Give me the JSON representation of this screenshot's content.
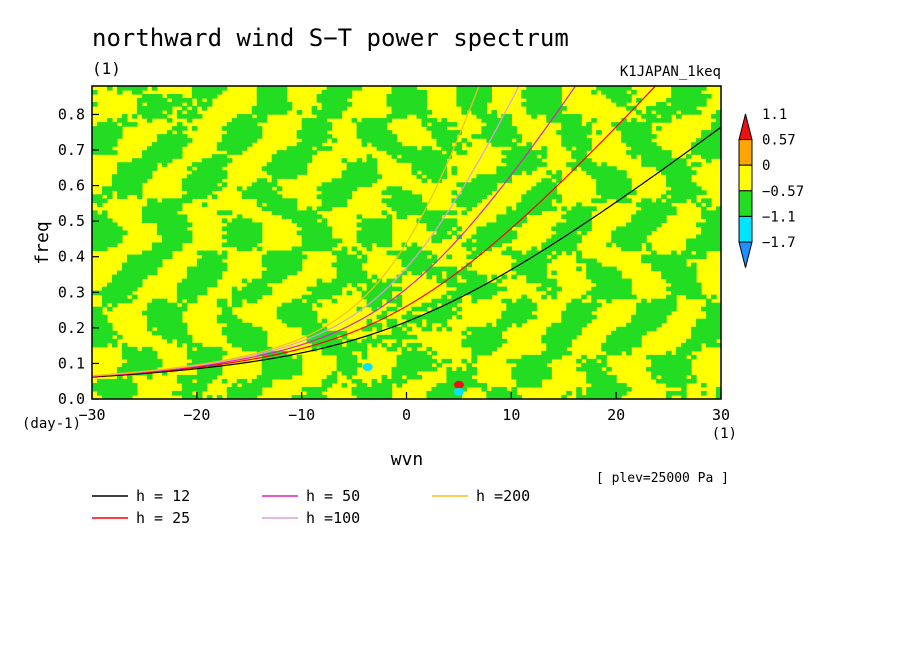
{
  "chart_data": {
    "type": "heatmap",
    "title": "northward wind S−T power spectrum",
    "subtitle_left": "(1)",
    "subtitle_right": "K1JAPAN_1keq",
    "xlabel": "wvn",
    "ylabel": "freq",
    "x_unit": "(1)",
    "y_unit": "(day-1)",
    "xlim": [
      -30,
      30
    ],
    "ylim": [
      0,
      0.88
    ],
    "x_ticks": [
      -30,
      -20,
      -10,
      0,
      10,
      20,
      30
    ],
    "x_tick_labels": [
      "−30",
      "−20",
      "−10",
      "0",
      "10",
      "20",
      "30"
    ],
    "y_ticks": [
      0,
      0.1,
      0.2,
      0.3,
      0.4,
      0.5,
      0.6,
      0.7,
      0.8
    ],
    "y_tick_labels": [
      "0.0",
      "0.1",
      "0.2",
      "0.3",
      "0.4",
      "0.5",
      "0.6",
      "0.7",
      "0.8"
    ],
    "colorbar": {
      "levels": [
        -1.7,
        -1.1,
        -0.57,
        0,
        0.57,
        1.1
      ],
      "labels": [
        "−1.7",
        "−1.1",
        "−0.57",
        "0",
        "0.57",
        "1.1"
      ],
      "colors": [
        "#1e90ff",
        "#00e5ff",
        "#22dd22",
        "#ffff00",
        "#ffa500",
        "#ee1111"
      ]
    },
    "field_note_values": {
      "dominant_negative": -0.57,
      "dominant_positive": 0.57
    },
    "anomalies": [
      {
        "x": -3.7,
        "y": 0.09,
        "color": "#00e5ff"
      },
      {
        "x": 5.0,
        "y": 0.04,
        "color": "#ee1111"
      },
      {
        "x": 5.0,
        "y": 0.02,
        "color": "#00e5ff"
      }
    ],
    "dispersion_curves": [
      {
        "label": "h = 12",
        "h": 12,
        "color": "#000000"
      },
      {
        "label": "h = 25",
        "h": 25,
        "color": "#ff0000"
      },
      {
        "label": "h = 50",
        "h": 50,
        "color": "#e020c0"
      },
      {
        "label": "h =100",
        "h": 100,
        "color": "#dda0dd"
      },
      {
        "label": "h =200",
        "h": 200,
        "color": "#f0c020"
      }
    ],
    "annotation": "[ plev=25000 Pa ]",
    "grid": false,
    "legend_position": "bottom-left"
  }
}
